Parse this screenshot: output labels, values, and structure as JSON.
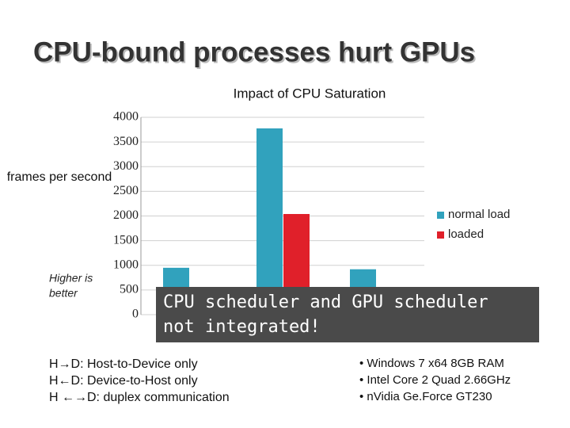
{
  "slide": {
    "title": "CPU-bound processes hurt GPUs",
    "notes_left": [
      "H→D: Host-to-Device only",
      "H←D: Device-to-Host only",
      "H ←→D: duplex communication"
    ],
    "notes_right": [
      "• Windows 7 x64 8GB RAM",
      "• Intel Core 2 Quad 2.66GHz",
      "• nVidia Ge.Force GT230"
    ],
    "callout": [
      "CPU scheduler and GPU scheduler",
      "not integrated!"
    ]
  },
  "chart_data": {
    "type": "bar",
    "title": "Impact of CPU Saturation",
    "y_label": "frames per second",
    "annotation": [
      "Higher is",
      "better"
    ],
    "categories": [
      null,
      null,
      null
    ],
    "series": [
      {
        "name": "normal load",
        "color": "#31a2bd",
        "values": [
          950,
          3775,
          920
        ]
      },
      {
        "name": "loaded",
        "color": "#e0202a",
        "values": [
          null,
          2040,
          null
        ]
      }
    ],
    "ylim": [
      0,
      4000
    ],
    "yticks": [
      0,
      500,
      1000,
      1500,
      2000,
      2500,
      3000,
      3500,
      4000
    ],
    "grid": true
  }
}
